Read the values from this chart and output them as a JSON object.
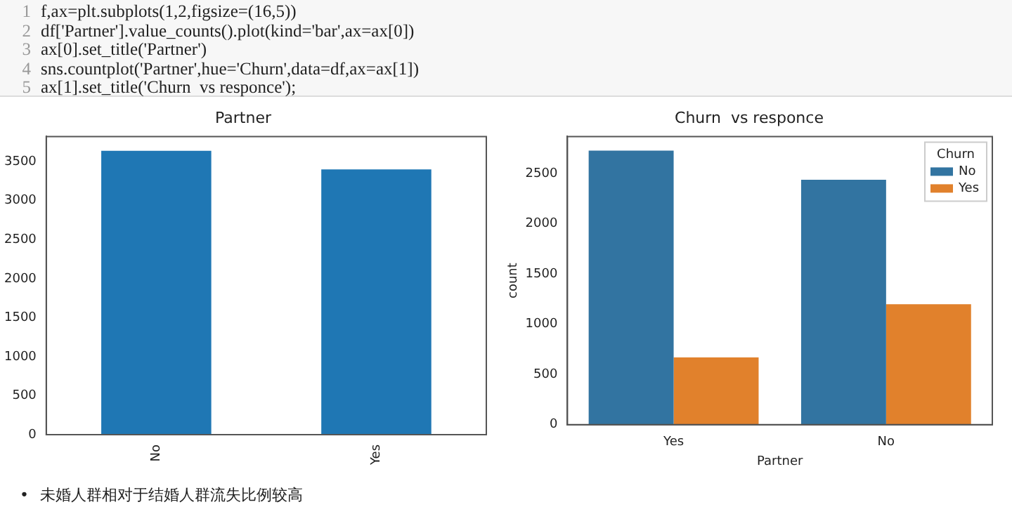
{
  "chart_data": [
    {
      "type": "bar",
      "title": "Partner",
      "categories": [
        "No",
        "Yes"
      ],
      "values": [
        3640,
        3400
      ],
      "color": "#1f77b4",
      "ylim": [
        0,
        3823
      ],
      "yticks": [
        0,
        500,
        1000,
        1500,
        2000,
        2500,
        3000,
        3500
      ],
      "grid": false,
      "legend": false,
      "annotations": [
        "1",
        "f,ax=plt.subplots(1,2,figsize=(16,5))",
        "2",
        "df['Partner'].value_counts().plot(kind='bar',ax=ax[0])",
        "3",
        "ax[0].set_title('Partner')",
        "4",
        "sns.countplot('Partner',hue='Churn',data=df,ax=ax[1])",
        "5",
        "ax[1].set_title('Churn  vs responce');"
      ]
    },
    {
      "type": "bar",
      "title": "Churn  vs responce",
      "xlabel": "Partner",
      "ylabel": "count",
      "legend_title": "Churn",
      "legend": "top right",
      "grid": false,
      "categories": [
        "Yes",
        "No"
      ],
      "series": [
        {
          "name": "No",
          "color": "#3274a1",
          "values": [
            2730,
            2440
          ]
        },
        {
          "name": "Yes",
          "color": "#e1812c",
          "values": [
            670,
            1200
          ]
        }
      ],
      "ylim": [
        0,
        2870
      ],
      "yticks": [
        0,
        500,
        1000,
        1500,
        2000,
        2500
      ],
      "annotations": [
        "•",
        "未婚人群相对于结婚人群流失比例较高"
      ]
    }
  ]
}
